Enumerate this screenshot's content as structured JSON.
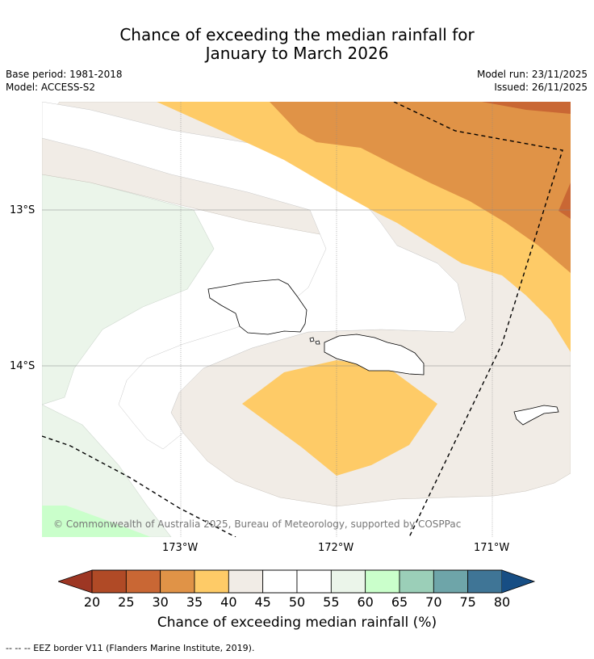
{
  "header": {
    "title_line1": "Chance of exceeding the median rainfall for",
    "title_line2": "January to March 2026",
    "base_period": "Base period: 1981-2018",
    "model": "Model: ACCESS-S2",
    "model_run": "Model run: 23/11/2025",
    "issued": "Issued: 26/11/2025"
  },
  "map": {
    "lat_labels": [
      "13°S",
      "14°S"
    ],
    "lon_labels": [
      "173°W",
      "172°W",
      "171°W"
    ],
    "copyright": "© Commonwealth of Australia 2025, Bureau of Meteorology, supported by COSPPac"
  },
  "colorbar": {
    "ticks": [
      "20",
      "25",
      "30",
      "35",
      "40",
      "45",
      "50",
      "55",
      "60",
      "65",
      "70",
      "75",
      "80"
    ],
    "title": "Chance of exceeding median rainfall (%)",
    "colors": [
      "#9d3623",
      "#b04a26",
      "#c96734",
      "#e09347",
      "#fecb67",
      "#f1ece6",
      "#ffffff",
      "#ffffff",
      "#ebf5ea",
      "#caffcb",
      "#9bcfb8",
      "#6ea5a9",
      "#3f7596",
      "#174e84"
    ]
  },
  "legend": {
    "eez_note": "--  --  -- EEZ border V11 (Flanders Marine Institute, 2019)."
  }
}
